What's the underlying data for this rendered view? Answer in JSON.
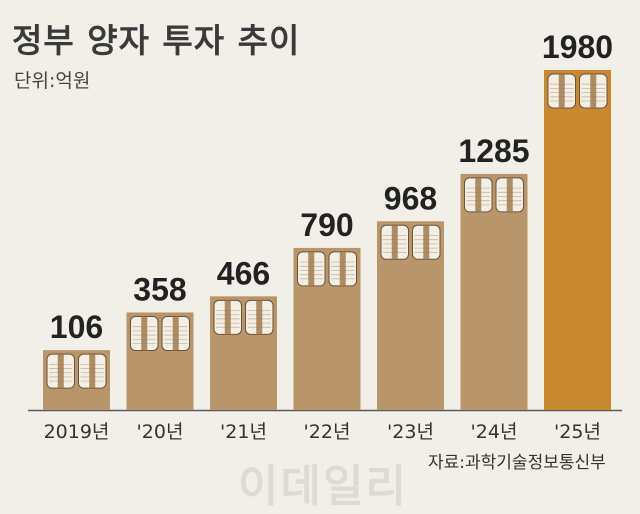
{
  "header": {
    "title": "정부 양자 투자 추이",
    "unit": "단위:억원"
  },
  "footer": {
    "source": "자료:과학기술정보통신부",
    "watermark": "이데일리"
  },
  "colors": {
    "bar": "#b8956a",
    "bar_highlight": "#c8892e",
    "money_paper": "#f3efe6",
    "money_band": "#a07a4e",
    "background": "#f2efe9"
  },
  "chart_data": {
    "type": "bar",
    "title": "정부 양자 투자 추이",
    "ylabel": "단위:억원",
    "xlabel": "",
    "categories": [
      "2019년",
      "'20년",
      "'21년",
      "'22년",
      "'23년",
      "'24년",
      "'25년"
    ],
    "values": [
      106,
      358,
      466,
      790,
      968,
      1285,
      1980
    ],
    "highlight_index": 6,
    "ylim": [
      0,
      1980
    ],
    "grid": false,
    "legend": "none"
  }
}
